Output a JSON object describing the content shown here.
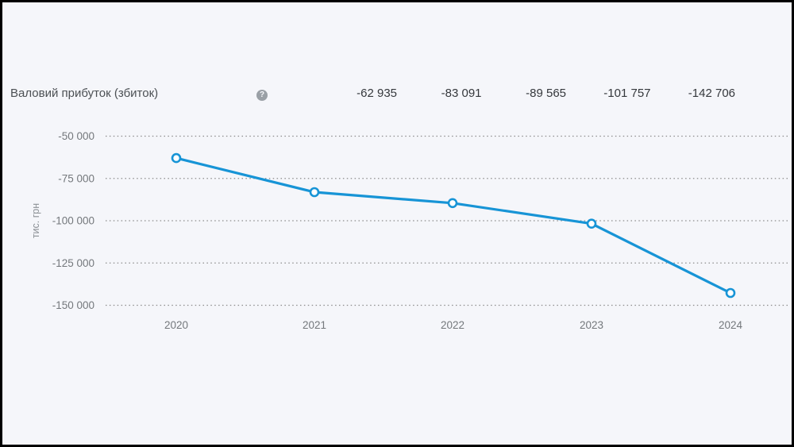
{
  "page": {
    "background_color": "#f5f6fa",
    "frame_color": "#000000"
  },
  "header": {
    "title": "Валовий прибуток (збиток)",
    "help_icon_glyph": "?",
    "values": [
      "-62 935",
      "-83 091",
      "-89 565",
      "-101 757",
      "-142 706"
    ]
  },
  "chart_data": {
    "type": "line",
    "title": "",
    "categories": [
      "2020",
      "2021",
      "2022",
      "2023",
      "2024"
    ],
    "series": [
      {
        "name": "Валовий прибуток (збиток)",
        "values": [
          -62935,
          -83091,
          -89565,
          -101757,
          -142706
        ],
        "value_labels": [
          "-62 935",
          "-83 091",
          "-89 565",
          "-101 757",
          "-142 706"
        ]
      }
    ],
    "xlabel": "",
    "ylabel": "тис. грн",
    "yticks": [
      -50000,
      -75000,
      -100000,
      -125000,
      -150000
    ],
    "ytick_labels": [
      "-50 000",
      "-75 000",
      "-100 000",
      "-125 000",
      "-150 000"
    ],
    "ylim": [
      -150000,
      -50000
    ],
    "grid": "horizontal-dotted",
    "legend": "none",
    "line_color": "#1794d6",
    "marker": "open-circle",
    "marker_fill": "#ffffff",
    "grid_color": "#8c8c8c",
    "tick_text_color": "#74787c",
    "ylabel_color": "#8b9095"
  }
}
